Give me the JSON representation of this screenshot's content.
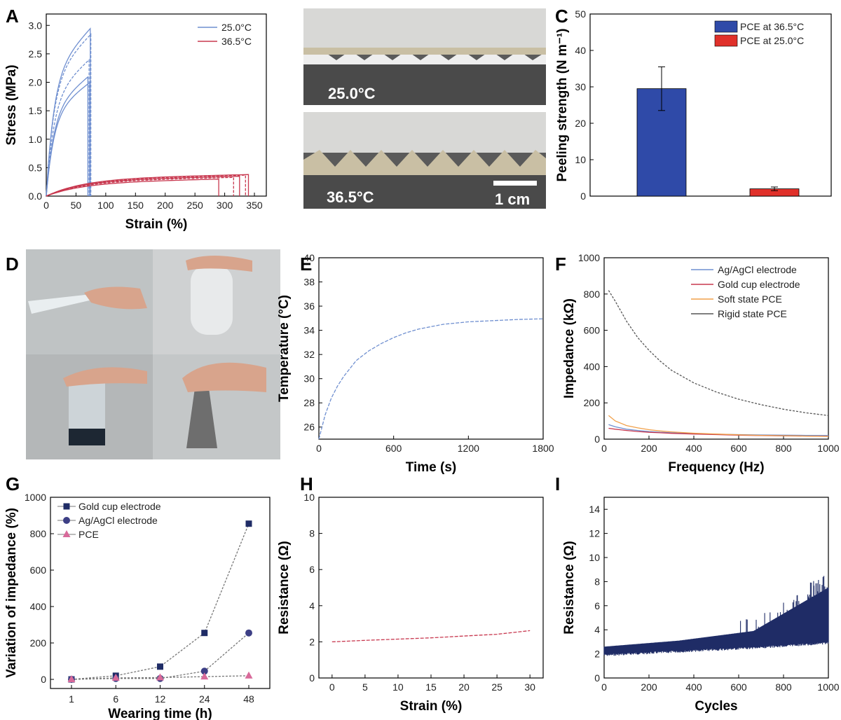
{
  "panel_labels": [
    "A",
    "B",
    "C",
    "D",
    "E",
    "F",
    "G",
    "H",
    "I"
  ],
  "photos": {
    "B_top_label": "25.0°C",
    "B_bottom_label": "36.5°C",
    "B_scale_label": "1 cm"
  },
  "colors": {
    "blue": "#6f8fd0",
    "red": "#c8384f",
    "navy": "#1f2c66",
    "bar_blue": "#2f4aa8",
    "bar_red": "#e0302a",
    "orange": "#f0a04a",
    "purple": "#3d3f85",
    "pink": "#d86a9a",
    "gray": "#555555"
  },
  "chart_data": [
    {
      "id": "A",
      "type": "line",
      "xlabel": "Strain (%)",
      "ylabel": "Stress (MPa)",
      "xlim": [
        0,
        370
      ],
      "ylim": [
        0,
        3.2
      ],
      "xticks": [
        0,
        50,
        100,
        150,
        200,
        250,
        300,
        350
      ],
      "yticks": [
        0,
        0.5,
        1.0,
        1.5,
        2.0,
        2.5,
        3.0
      ],
      "ytick_labels": [
        "0.0",
        "0.5",
        "1.0",
        "1.5",
        "2.0",
        "2.5",
        "3.0"
      ],
      "legend": "top-right",
      "series": [
        {
          "name": "25.0°C",
          "color": "#6f8fd0",
          "curves": [
            {
              "break": 70,
              "peak": 2.1
            },
            {
              "break": 72,
              "peak": 2.4
            },
            {
              "break": 74,
              "peak": 2.95
            },
            {
              "break": 75,
              "peak": 2.85
            },
            {
              "break": 73,
              "peak": 2.0
            }
          ]
        },
        {
          "name": "36.5°C",
          "color": "#c8384f",
          "curves": [
            {
              "break": 290,
              "peak": 0.3
            },
            {
              "break": 315,
              "peak": 0.33
            },
            {
              "break": 325,
              "peak": 0.35
            },
            {
              "break": 335,
              "peak": 0.37
            },
            {
              "break": 340,
              "peak": 0.38
            }
          ]
        }
      ]
    },
    {
      "id": "C",
      "type": "bar",
      "xlabel": "",
      "ylabel": "Peeling strength (N m⁻¹)",
      "ylim": [
        0,
        50
      ],
      "yticks": [
        0,
        10,
        20,
        30,
        40,
        50
      ],
      "legend": "top-right",
      "series": [
        {
          "name": "PCE at 36.5°C",
          "value": 29.5,
          "error": 6.0,
          "color": "#2f4aa8"
        },
        {
          "name": "PCE at 25.0°C",
          "value": 2.0,
          "error": 0.5,
          "color": "#e0302a"
        }
      ]
    },
    {
      "id": "E",
      "type": "line",
      "xlabel": "Time (s)",
      "ylabel": "Temperature (°C)",
      "xlim": [
        0,
        1800
      ],
      "ylim": [
        25,
        40
      ],
      "xticks": [
        0,
        600,
        1200,
        1800
      ],
      "yticks": [
        26,
        28,
        30,
        32,
        34,
        36,
        38,
        40
      ],
      "x": [
        0,
        50,
        100,
        150,
        200,
        300,
        400,
        500,
        600,
        700,
        800,
        900,
        1000,
        1200,
        1400,
        1600,
        1800
      ],
      "y": [
        25.0,
        27.0,
        28.4,
        29.4,
        30.2,
        31.5,
        32.3,
        32.9,
        33.4,
        33.8,
        34.1,
        34.3,
        34.5,
        34.7,
        34.8,
        34.9,
        34.95
      ]
    },
    {
      "id": "F",
      "type": "line",
      "xlabel": "Frequency (Hz)",
      "ylabel": "Impedance (kΩ)",
      "xlim": [
        0,
        1000
      ],
      "ylim": [
        0,
        1000
      ],
      "xticks": [
        0,
        200,
        400,
        600,
        800,
        1000
      ],
      "yticks": [
        0,
        200,
        400,
        600,
        800,
        1000
      ],
      "legend": "top-right",
      "x": [
        20,
        50,
        100,
        150,
        200,
        250,
        300,
        400,
        500,
        600,
        700,
        800,
        900,
        1000
      ],
      "series": [
        {
          "name": "Ag/AgCl electrode",
          "color": "#6f8fd0",
          "values": [
            80,
            68,
            55,
            48,
            42,
            38,
            35,
            30,
            27,
            25,
            23,
            22,
            21,
            20
          ]
        },
        {
          "name": "Gold cup electrode",
          "color": "#c8384f",
          "values": [
            60,
            55,
            48,
            42,
            38,
            35,
            32,
            28,
            25,
            22,
            20,
            18,
            17,
            16
          ]
        },
        {
          "name": "Soft state PCE",
          "color": "#f0a04a",
          "values": [
            130,
            100,
            75,
            62,
            52,
            45,
            40,
            33,
            28,
            24,
            21,
            19,
            17,
            15
          ]
        },
        {
          "name": "Rigid state PCE",
          "color": "#555555",
          "values": [
            820,
            760,
            650,
            560,
            490,
            430,
            380,
            310,
            260,
            220,
            190,
            165,
            145,
            130
          ]
        }
      ]
    },
    {
      "id": "G",
      "type": "line",
      "xlabel": "Wearing time (h)",
      "ylabel": "Variation of impedance (%)",
      "categories": [
        "1",
        "6",
        "12",
        "24",
        "48"
      ],
      "ylim": [
        -50,
        1000
      ],
      "yticks": [
        0,
        200,
        400,
        600,
        800,
        1000
      ],
      "legend": "top-left",
      "series": [
        {
          "name": "Gold cup electrode",
          "marker": "square",
          "color": "#1f2c66",
          "values": [
            0,
            20,
            70,
            255,
            855
          ]
        },
        {
          "name": "Ag/AgCl electrode",
          "marker": "circle",
          "color": "#3d3f85",
          "values": [
            0,
            5,
            5,
            45,
            255
          ]
        },
        {
          "name": "PCE",
          "marker": "triangle",
          "color": "#d86a9a",
          "values": [
            0,
            8,
            10,
            15,
            20
          ]
        }
      ]
    },
    {
      "id": "H",
      "type": "line",
      "xlabel": "Strain (%)",
      "ylabel": "Resistance (Ω)",
      "xlim": [
        -2,
        32
      ],
      "ylim": [
        0,
        10
      ],
      "xticks": [
        0,
        5,
        10,
        15,
        20,
        25,
        30
      ],
      "yticks": [
        0,
        2,
        4,
        6,
        8,
        10
      ],
      "x": [
        0,
        5,
        10,
        15,
        20,
        25,
        30
      ],
      "y": [
        2.0,
        2.08,
        2.15,
        2.22,
        2.32,
        2.42,
        2.62
      ]
    },
    {
      "id": "I",
      "type": "line",
      "xlabel": "Cycles",
      "ylabel": "Resistance (Ω)",
      "xlim": [
        0,
        1000
      ],
      "ylim": [
        0,
        15
      ],
      "xticks": [
        0,
        200,
        400,
        600,
        800,
        1000
      ],
      "yticks": [
        0,
        2,
        4,
        6,
        8,
        10,
        12,
        14
      ],
      "baseline_low": [
        2.0,
        2.3,
        2.6,
        3.0
      ],
      "baseline_high": [
        2.6,
        3.1,
        3.9,
        7.5
      ],
      "peak_value": 8.5
    }
  ]
}
